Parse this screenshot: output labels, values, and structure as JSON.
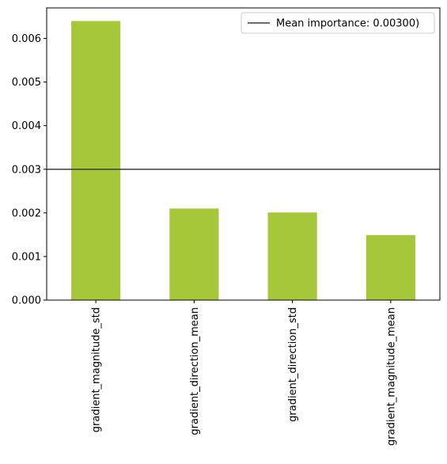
{
  "chart_data": {
    "type": "bar",
    "title": "",
    "xlabel": "",
    "ylabel": "",
    "categories": [
      "gradient_magnitude_std",
      "gradient_direction_mean",
      "gradient_direction_std",
      "gradient_magnitude_mean"
    ],
    "values": [
      0.0064,
      0.0021,
      0.00201,
      0.00149
    ],
    "ylim": [
      0,
      0.0067
    ],
    "yticks": [
      "0.000",
      "0.001",
      "0.002",
      "0.003",
      "0.004",
      "0.005",
      "0.006"
    ],
    "bar_color": "#a6c73a",
    "mean_line": {
      "value": 0.003,
      "label": "Mean importance: 0.00300)",
      "color": "#3d3d3d"
    },
    "legend_position": "top-right",
    "grid": false
  }
}
